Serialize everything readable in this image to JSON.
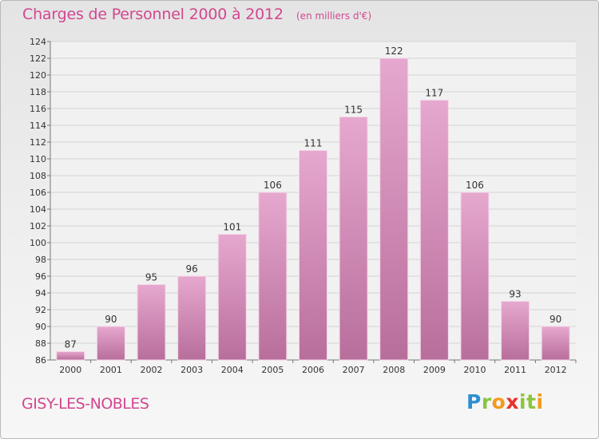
{
  "title": "Charges de Personnel 2000 à 2012",
  "subtitle": "(en milliers d'€)",
  "commune": "GISY-LES-NOBLES",
  "logo": {
    "letters": [
      "P",
      "r",
      "o",
      "x",
      "i",
      "t",
      "i"
    ],
    "colors": [
      "#2e8fd0",
      "#8bc53f",
      "#f39a1c",
      "#e8302b",
      "#8bc53f",
      "#8bc53f",
      "#f39a1c"
    ]
  },
  "colors": {
    "bar_top": "#e6a8cf",
    "bar_bottom": "#b86e9b",
    "accent": "#d2478f"
  },
  "chart_data": {
    "type": "bar",
    "title": "Charges de Personnel 2000 à 2012",
    "subtitle": "(en milliers d'€)",
    "categories": [
      "2000",
      "2001",
      "2002",
      "2003",
      "2004",
      "2005",
      "2006",
      "2007",
      "2008",
      "2009",
      "2010",
      "2011",
      "2012"
    ],
    "values": [
      87,
      90,
      95,
      96,
      101,
      106,
      111,
      115,
      122,
      117,
      106,
      93,
      90
    ],
    "ylim": [
      86,
      124
    ],
    "yticks": [
      86,
      88,
      90,
      92,
      94,
      96,
      98,
      100,
      102,
      104,
      106,
      108,
      110,
      112,
      114,
      116,
      118,
      120,
      122,
      124
    ],
    "grid": true
  }
}
